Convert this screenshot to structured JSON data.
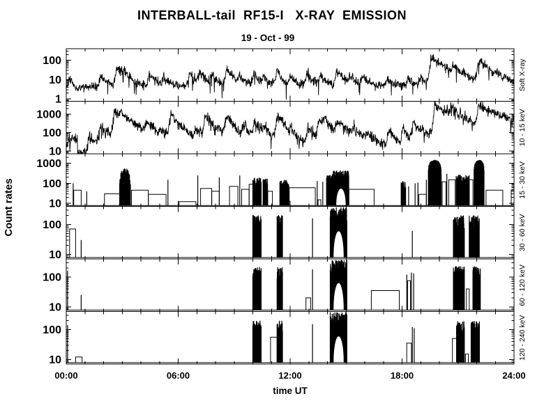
{
  "title": "INTERBALL-tail  RF15-I   X-RAY  EMISSION",
  "date": "19 - Oct - 99",
  "axes": {
    "ylabel": "Count rates",
    "xlabel": "time UT"
  },
  "colors": {
    "foreground": "#000000",
    "background": "#ffffff"
  },
  "chart_data": {
    "type": "line",
    "title": "INTERBALL-tail RF15-I X-RAY EMISSION",
    "subtitle": "19 - Oct - 99",
    "xlabel": "time UT",
    "ylabel": "Count rates",
    "scale_y": "log",
    "x_range_hours": [
      0,
      24
    ],
    "x_major_tick_hours": 6,
    "x_minor_tick_hours": 1,
    "x_tick_labels": [
      "00:00",
      "06:00",
      "12:00",
      "18:00",
      "24:00"
    ],
    "legend_position": "right-rotated",
    "grid": false,
    "panels": [
      {
        "label": "Soft X-ray",
        "style": "continuous",
        "ylim": [
          0.75,
          400
        ],
        "yticks": [
          100,
          10,
          1
        ],
        "baseline": 4.6,
        "noise": 0.32,
        "dropout": 0.015,
        "steps": [
          [
            0.35,
            0.85,
            3.2
          ]
        ],
        "flares": [
          [
            0.15,
            6
          ],
          [
            1.85,
            12
          ],
          [
            2.7,
            42
          ],
          [
            3.05,
            14
          ],
          [
            4.45,
            16
          ],
          [
            5.2,
            9
          ],
          [
            6.6,
            20
          ],
          [
            7.15,
            16
          ],
          [
            7.8,
            13
          ],
          [
            8.6,
            28
          ],
          [
            9.3,
            12
          ],
          [
            10.05,
            16
          ],
          [
            10.6,
            10
          ],
          [
            11.3,
            32,
            0.5
          ],
          [
            12.0,
            10
          ],
          [
            12.9,
            18
          ],
          [
            13.6,
            12
          ],
          [
            14.5,
            24
          ],
          [
            15.2,
            12
          ],
          [
            15.9,
            9
          ],
          [
            17.2,
            7
          ],
          [
            18.3,
            9
          ],
          [
            19.0,
            10
          ],
          [
            19.55,
            130,
            1.4
          ],
          [
            20.1,
            20
          ],
          [
            20.75,
            35
          ],
          [
            21.3,
            10
          ],
          [
            22.1,
            95,
            1.3
          ],
          [
            23.0,
            7
          ],
          [
            23.5,
            6
          ]
        ]
      },
      {
        "label": "10 - 15 keV",
        "style": "continuous",
        "ylim": [
          7,
          5000
        ],
        "yticks": [
          1000,
          100,
          10
        ],
        "baseline": 16,
        "noise": 0.4,
        "dropout": 0.012,
        "steps": [
          [
            0.08,
            0.6,
            38
          ],
          [
            0.6,
            1.15,
            9
          ],
          [
            23.75,
            24,
            60
          ]
        ],
        "flares": [
          [
            1.25,
            70,
            0.5
          ],
          [
            1.8,
            200
          ],
          [
            2.6,
            1600
          ],
          [
            2.9,
            350,
            0.5
          ],
          [
            4.25,
            280
          ],
          [
            5.05,
            60
          ],
          [
            5.6,
            1100,
            0.5
          ],
          [
            6.3,
            90
          ],
          [
            6.9,
            120
          ],
          [
            7.45,
            900,
            0.5
          ],
          [
            8.1,
            100
          ],
          [
            8.55,
            800,
            0.6
          ],
          [
            9.5,
            260,
            0.6
          ],
          [
            10.1,
            420,
            0.5
          ],
          [
            10.6,
            200,
            0.5
          ],
          [
            11.3,
            1000,
            0.5
          ],
          [
            12.05,
            150,
            0.5
          ],
          [
            12.95,
            200,
            0.6
          ],
          [
            13.55,
            550,
            0.5
          ],
          [
            13.85,
            600,
            0.5
          ],
          [
            14.5,
            320,
            1.2
          ],
          [
            15.35,
            90
          ],
          [
            16.1,
            50
          ],
          [
            17.3,
            140,
            0.5
          ],
          [
            18.05,
            170,
            0.5
          ],
          [
            18.6,
            400,
            0.5
          ],
          [
            19.05,
            120
          ],
          [
            19.75,
            2600,
            1.5
          ],
          [
            20.6,
            1500,
            0.45
          ],
          [
            21.35,
            140
          ],
          [
            22.1,
            2800,
            1.4
          ],
          [
            23.3,
            70
          ],
          [
            23.95,
            120,
            0.4
          ]
        ]
      },
      {
        "label": "15 - 30 keV",
        "style": "floor",
        "ylim": [
          7,
          3000
        ],
        "yticks": [
          1000,
          100,
          10
        ],
        "baseline": 7.8,
        "steps": [
          [
            0.4,
            0.8,
            45
          ],
          [
            2.05,
            3.0,
            30
          ],
          [
            3.5,
            4.4,
            45
          ],
          [
            4.4,
            5.35,
            28
          ],
          [
            6.05,
            6.95,
            12
          ],
          [
            7.2,
            7.8,
            55
          ],
          [
            7.8,
            8.2,
            40
          ],
          [
            8.75,
            9.2,
            70
          ],
          [
            9.4,
            9.8,
            50
          ],
          [
            9.8,
            10.0,
            90
          ],
          [
            10.8,
            11.05,
            40
          ],
          [
            11.95,
            13.35,
            60
          ],
          [
            13.5,
            13.65,
            15
          ],
          [
            15.15,
            16.5,
            50
          ],
          [
            18.9,
            19.3,
            28
          ],
          [
            20.15,
            20.35,
            120
          ],
          [
            20.5,
            20.85,
            150
          ],
          [
            21.6,
            21.8,
            150
          ],
          [
            22.5,
            23.4,
            45
          ],
          [
            23.85,
            24,
            45
          ]
        ],
        "spikes": [
          [
            0.37,
            100
          ],
          [
            1.1,
            40
          ],
          [
            5.45,
            150
          ],
          [
            7.05,
            250
          ],
          [
            8.2,
            200
          ],
          [
            9.3,
            250
          ],
          [
            13.45,
            130
          ],
          [
            13.75,
            120
          ],
          [
            18.35,
            70
          ],
          [
            18.7,
            100
          ],
          [
            18.85,
            110
          ],
          [
            19.3,
            150
          ],
          [
            20.4,
            300
          ]
        ],
        "bursts": [
          [
            2.85,
            3.45,
            600,
            "peaked"
          ],
          [
            10.0,
            10.45,
            190,
            "flat"
          ],
          [
            10.55,
            10.8,
            180,
            "flat"
          ],
          [
            11.45,
            11.95,
            150,
            "flat"
          ],
          [
            13.95,
            14.3,
            300,
            "flat"
          ],
          [
            14.3,
            15.15,
            450,
            "flat",
            110
          ],
          [
            17.95,
            18.2,
            130,
            "flat"
          ],
          [
            19.4,
            20.1,
            1500,
            "solid"
          ],
          [
            20.9,
            21.6,
            280,
            "flat"
          ],
          [
            21.85,
            22.4,
            1500,
            "solid"
          ]
        ]
      },
      {
        "label": "30 - 60 keV",
        "style": "floor",
        "ylim": [
          7,
          400
        ],
        "yticks": [
          100,
          10
        ],
        "baseline": 7.8,
        "steps": [
          [
            0.18,
            0.5,
            70
          ]
        ],
        "spikes": [
          [
            0.8,
            30
          ],
          [
            13.2,
            160
          ],
          [
            18.55,
            60
          ]
        ],
        "bursts": [
          [
            10.0,
            10.45,
            210,
            "flat"
          ],
          [
            11.3,
            11.6,
            210,
            "flat"
          ],
          [
            14.15,
            15.05,
            380,
            "flat",
            120
          ],
          [
            20.75,
            21.35,
            200,
            "flat"
          ],
          [
            21.6,
            22.15,
            200,
            "flat"
          ]
        ]
      },
      {
        "label": "60 - 120 keV",
        "style": "floor",
        "ylim": [
          7,
          400
        ],
        "yticks": [
          100,
          10
        ],
        "baseline": 7.8,
        "steps": [
          [
            12.85,
            13.1,
            20
          ],
          [
            16.35,
            17.85,
            35
          ],
          [
            18.3,
            18.45,
            75
          ],
          [
            21.45,
            21.6,
            40
          ]
        ],
        "spikes": [
          [
            0.07,
            160
          ],
          [
            0.8,
            25
          ],
          [
            13.2,
            180
          ],
          [
            18.25,
            120
          ],
          [
            18.5,
            140
          ],
          [
            18.62,
            130
          ]
        ],
        "bursts": [
          [
            10.0,
            10.45,
            220,
            "flat"
          ],
          [
            11.3,
            11.6,
            220,
            "flat"
          ],
          [
            14.15,
            15.05,
            380,
            "flat",
            130
          ],
          [
            20.75,
            21.35,
            230,
            "flat"
          ],
          [
            21.8,
            22.2,
            230,
            "flat"
          ]
        ]
      },
      {
        "label": "120 - 240 keV",
        "style": "floor",
        "ylim": [
          7,
          400
        ],
        "yticks": [
          100,
          10
        ],
        "baseline": 7.8,
        "steps": [
          [
            0.5,
            0.85,
            12
          ],
          [
            10.95,
            11.3,
            55
          ],
          [
            18.25,
            18.5,
            35
          ],
          [
            20.7,
            20.92,
            50
          ],
          [
            21.4,
            21.55,
            15
          ]
        ],
        "spikes": [
          [
            0.07,
            140
          ],
          [
            13.2,
            150
          ],
          [
            18.55,
            120
          ],
          [
            18.65,
            110
          ]
        ],
        "bursts": [
          [
            10.0,
            10.45,
            200,
            "flat"
          ],
          [
            11.3,
            11.6,
            210,
            "flat"
          ],
          [
            14.15,
            15.05,
            380,
            "flat",
            120
          ],
          [
            20.92,
            21.35,
            190,
            "flat"
          ],
          [
            21.7,
            22.15,
            200,
            "flat"
          ]
        ]
      }
    ]
  }
}
